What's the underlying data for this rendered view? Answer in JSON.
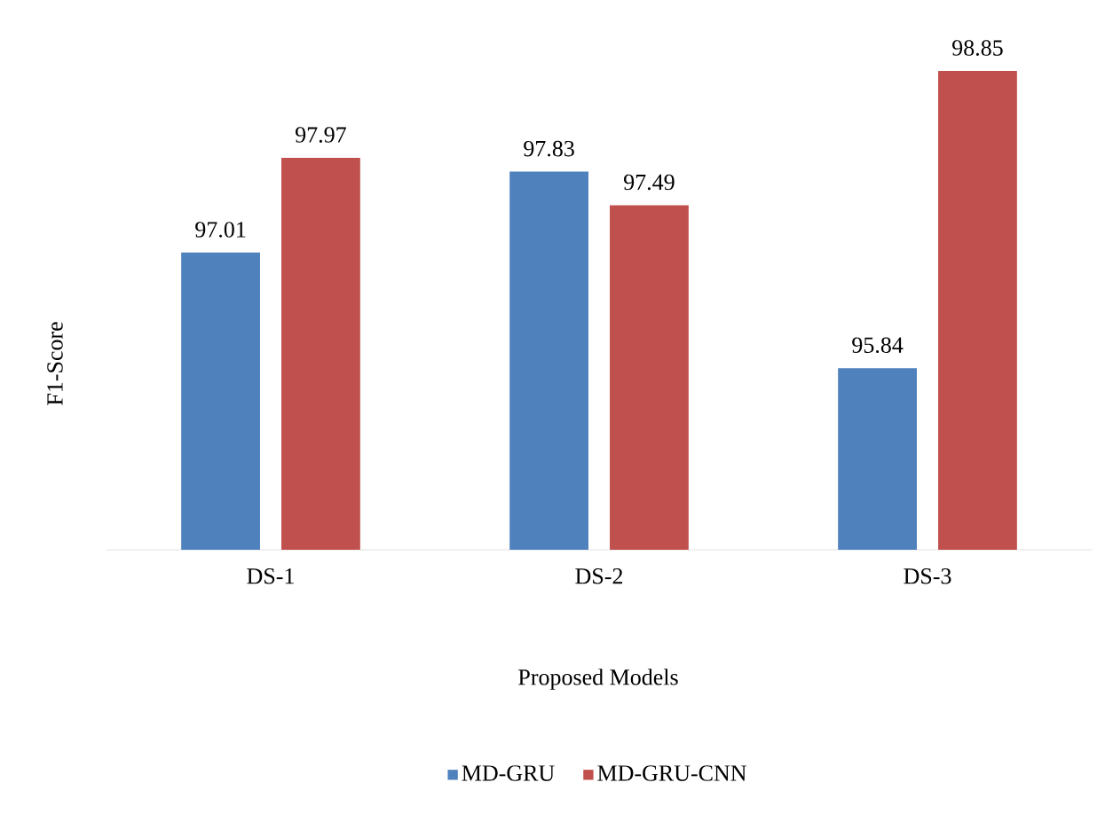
{
  "chart_data": {
    "type": "bar",
    "xlabel": "Proposed Models",
    "ylabel": "F1-Score",
    "categories": [
      "DS-1",
      "DS-2",
      "DS-3"
    ],
    "series": [
      {
        "name": "MD-GRU",
        "color": "#4f81bd",
        "values": [
          97.01,
          97.83,
          95.84
        ]
      },
      {
        "name": "MD-GRU-CNN",
        "color": "#c0504d",
        "values": [
          97.97,
          97.49,
          98.85
        ]
      }
    ],
    "ylim": [
      94,
      98.85
    ],
    "tick_labels": "x",
    "data_labels": true,
    "legend": "bottom",
    "grid": false
  }
}
